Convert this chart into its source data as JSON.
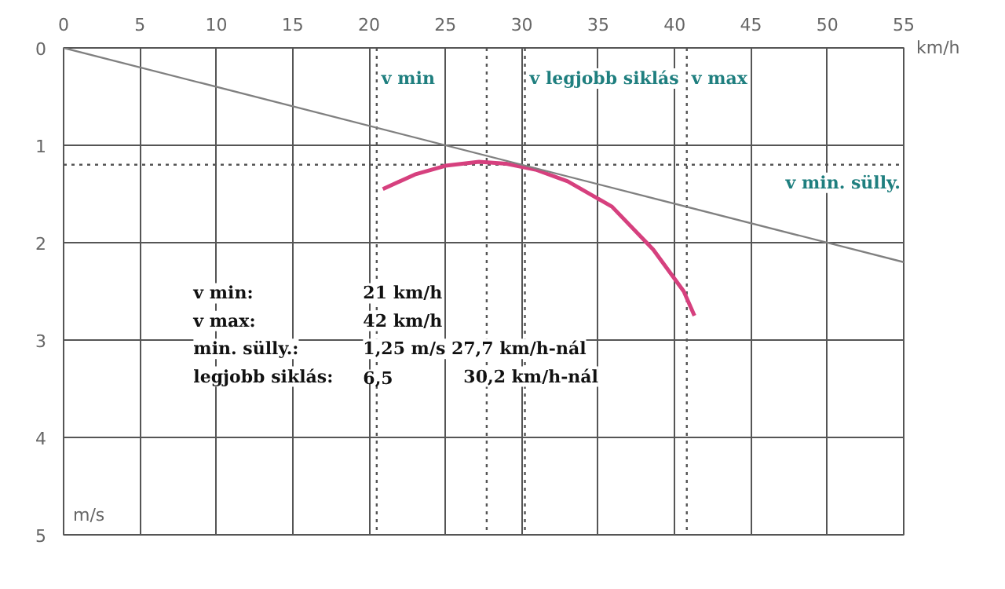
{
  "chart_data": {
    "type": "line",
    "xlabel": "km/h",
    "ylabel": "m/s",
    "xlim": [
      0,
      55
    ],
    "xticks": [
      0,
      5,
      10,
      15,
      20,
      25,
      30,
      35,
      40,
      45,
      50,
      55
    ],
    "ylim": [
      5,
      0
    ],
    "yticks": [
      0,
      1,
      2,
      3,
      4,
      5
    ],
    "grid": true,
    "series": [
      {
        "color": "#d6407e",
        "x": [
          20.9,
          23,
          25,
          27.2,
          29,
          30.9,
          33,
          35.9,
          38.6,
          40.6,
          41.3
        ],
        "values": [
          1.45,
          1.3,
          1.21,
          1.17,
          1.19,
          1.25,
          1.37,
          1.63,
          2.07,
          2.5,
          2.75
        ]
      },
      {
        "color": "#808080",
        "x": [
          0,
          55
        ],
        "values": [
          0,
          2.2
        ]
      }
    ],
    "ref_lines": [
      {
        "axis": "x",
        "value": 20.5,
        "label": "v min",
        "line_style": "dotted",
        "color": "#555555"
      },
      {
        "axis": "x",
        "value": 27.7,
        "line_style": "dotted",
        "color": "#555555"
      },
      {
        "axis": "x",
        "value": 30.2,
        "label": "v legjobb siklás",
        "line_style": "dotted",
        "color": "#555555"
      },
      {
        "axis": "x",
        "value": 40.8,
        "label": "v max",
        "line_style": "dotted",
        "color": "#555555"
      },
      {
        "axis": "y",
        "value": 1.2,
        "label": "v min. sülly.",
        "line_style": "dotted",
        "color": "#555555"
      }
    ],
    "annotations": [
      "v min:\t21 km/h",
      "v max:\t42 km/h",
      "min. sülly.:\t1,25 m/s 27,7 km/h-nál",
      "legjobb siklás:\t6,5\t30,2 km/h-nál"
    ]
  }
}
